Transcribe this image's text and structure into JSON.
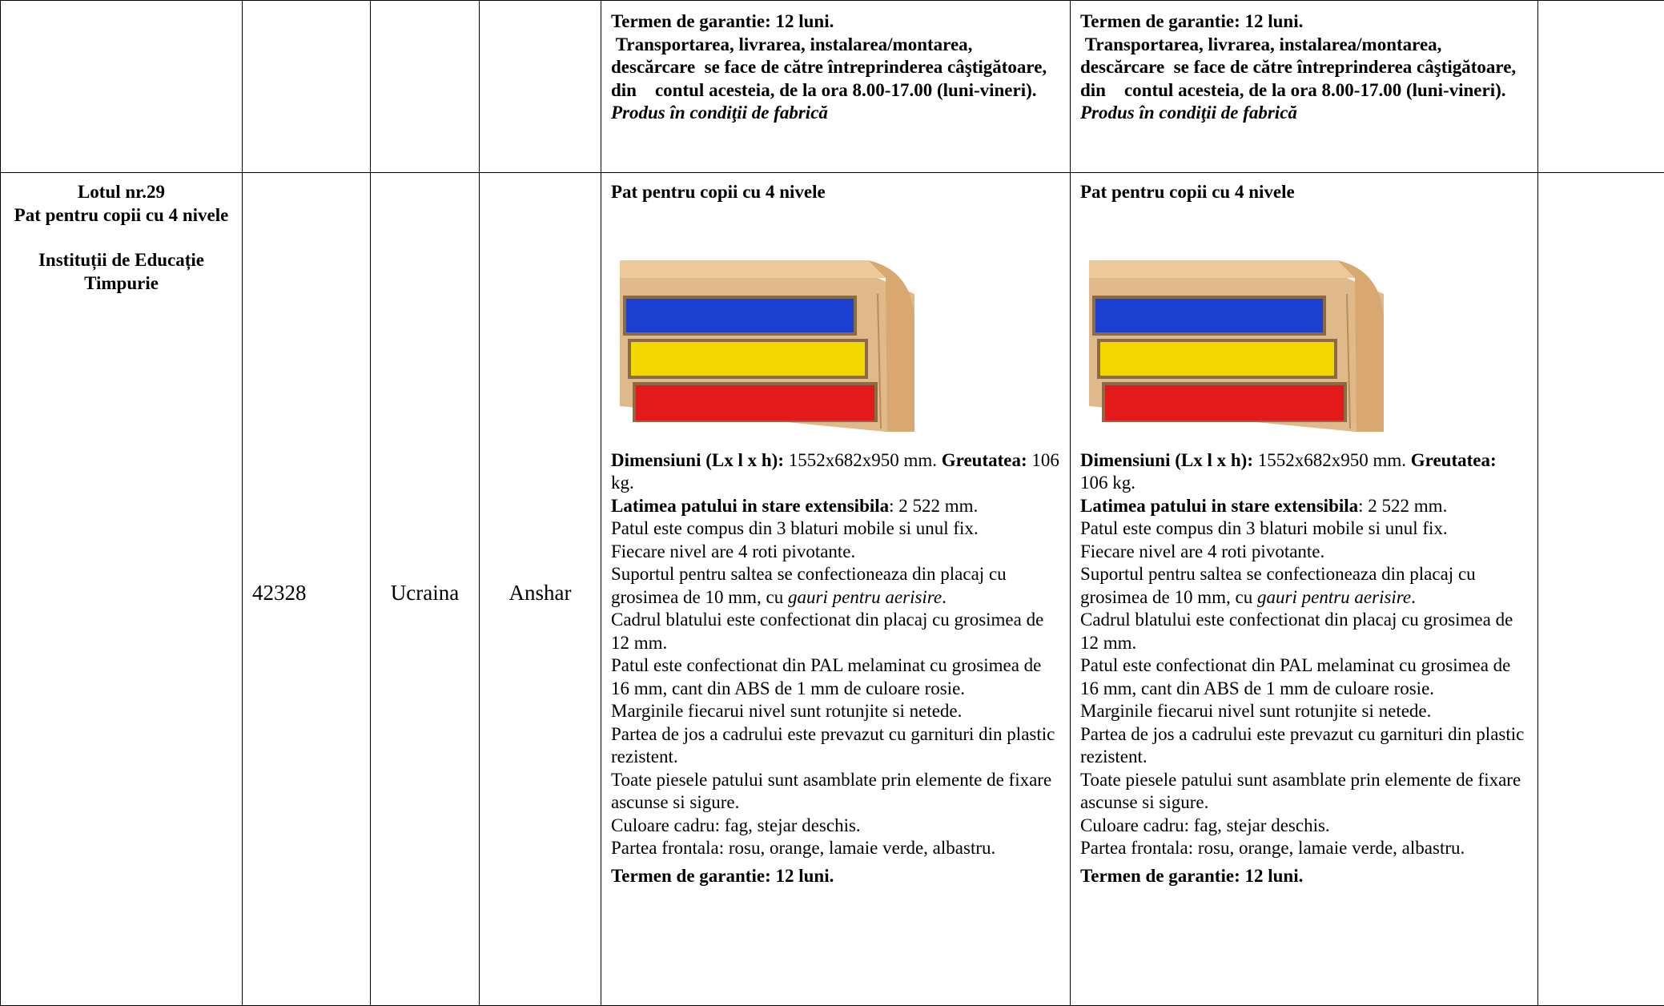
{
  "table": {
    "rows": [
      {
        "spec_required": {
          "paragraphs": [
            {
              "runs": [
                {
                  "style": "bold",
                  "text": "Termen de garantie: 12 luni."
                }
              ]
            },
            {
              "runs": [
                {
                  "style": "bold",
                  "text": " Transportarea, livrarea, instalarea/montarea, descărcare  se face de către întreprinderea câştigătoare,  din    contul acesteia, de la ora 8.00-17.00 (luni-vineri)."
                }
              ]
            },
            {
              "runs": [
                {
                  "style": "bold-italic",
                  "text": "Produs în condiţii de fabrică"
                }
              ]
            }
          ]
        },
        "spec_offered": {
          "paragraphs": [
            {
              "runs": [
                {
                  "style": "bold",
                  "text": "Termen de garantie: 12 luni."
                }
              ]
            },
            {
              "runs": [
                {
                  "style": "bold",
                  "text": " Transportarea, livrarea, instalarea/montarea, descărcare  se face de către întreprinderea câştigătoare,  din    contul acesteia, de la ora 8.00-17.00 (luni-vineri)."
                }
              ]
            },
            {
              "runs": [
                {
                  "style": "bold-italic",
                  "text": "Produs în condiţii de fabrică"
                }
              ]
            }
          ]
        }
      },
      {
        "lot": "Lotul nr.29",
        "item": "Pat pentru copii cu 4 nivele",
        "beneficiary": "Instituții de Educație Timpurie",
        "code": "42328",
        "country": "Ucraina",
        "producer": "Anshar",
        "spec_required": {
          "title": "Pat pentru copii cu 4 nivele",
          "paragraphs": [
            {
              "runs": [
                {
                  "style": "bold",
                  "text": "Dimensiuni (Lx l x h):"
                },
                {
                  "style": "normal",
                  "text": " 1552x682x950 mm. "
                },
                {
                  "style": "bold",
                  "text": "Greutatea:"
                },
                {
                  "style": "normal",
                  "text": " 106 kg."
                }
              ]
            },
            {
              "runs": [
                {
                  "style": "bold",
                  "text": "Latimea patului in stare extensibila"
                },
                {
                  "style": "normal",
                  "text": ": 2 522 mm."
                }
              ]
            },
            {
              "runs": [
                {
                  "style": "normal",
                  "text": "Patul este compus din 3 blaturi mobile si unul fix."
                }
              ]
            },
            {
              "runs": [
                {
                  "style": "normal",
                  "text": "Fiecare nivel are 4 roti pivotante."
                }
              ]
            },
            {
              "runs": [
                {
                  "style": "normal",
                  "text": "Suportul pentru saltea se confectioneaza din placaj cu grosimea de 10 mm, cu "
                },
                {
                  "style": "italic",
                  "text": "gauri pentru aerisire"
                },
                {
                  "style": "normal",
                  "text": "."
                }
              ]
            },
            {
              "runs": [
                {
                  "style": "normal",
                  "text": "Cadrul blatului este confectionat din placaj cu grosimea de 12 mm."
                }
              ]
            },
            {
              "runs": [
                {
                  "style": "normal",
                  "text": "Patul este confectionat din PAL melaminat cu grosimea de 16 mm, cant din ABS de 1 mm de culoare rosie."
                }
              ]
            },
            {
              "runs": [
                {
                  "style": "normal",
                  "text": "Marginile fiecarui nivel sunt rotunjite si netede."
                }
              ]
            },
            {
              "runs": [
                {
                  "style": "normal",
                  "text": "Partea de jos a cadrului este prevazut cu garnituri din plastic rezistent."
                }
              ]
            },
            {
              "runs": [
                {
                  "style": "normal",
                  "text": "Toate piesele patului sunt asamblate prin elemente de fixare ascunse si sigure."
                }
              ]
            },
            {
              "runs": [
                {
                  "style": "normal",
                  "text": "Culoare cadru: fag, stejar deschis."
                }
              ]
            },
            {
              "runs": [
                {
                  "style": "normal",
                  "text": "Partea frontala: rosu, orange, lamaie verde, albastru."
                }
              ]
            },
            {
              "runs": [
                {
                  "style": "bold",
                  "text": "Termen de garantie: 12 luni."
                }
              ]
            }
          ]
        },
        "spec_offered": {
          "title": "Pat pentru copii cu 4 nivele",
          "paragraphs": [
            {
              "runs": [
                {
                  "style": "bold",
                  "text": "Dimensiuni (Lx l x h):"
                },
                {
                  "style": "normal",
                  "text": " 1552x682x950 mm. "
                },
                {
                  "style": "bold",
                  "text": "Greutatea:"
                },
                {
                  "style": "normal",
                  "text": " 106 kg."
                }
              ]
            },
            {
              "runs": [
                {
                  "style": "bold",
                  "text": "Latimea patului in stare extensibila"
                },
                {
                  "style": "normal",
                  "text": ": 2 522 mm."
                }
              ]
            },
            {
              "runs": [
                {
                  "style": "normal",
                  "text": "Patul este compus din 3 blaturi mobile si unul fix."
                }
              ]
            },
            {
              "runs": [
                {
                  "style": "normal",
                  "text": "Fiecare nivel are 4 roti pivotante."
                }
              ]
            },
            {
              "runs": [
                {
                  "style": "normal",
                  "text": "Suportul pentru saltea se confectioneaza din placaj cu grosimea de 10 mm, cu "
                },
                {
                  "style": "italic",
                  "text": "gauri pentru aerisire"
                },
                {
                  "style": "normal",
                  "text": "."
                }
              ]
            },
            {
              "runs": [
                {
                  "style": "normal",
                  "text": "Cadrul blatului este confectionat din placaj cu grosimea de 12 mm."
                }
              ]
            },
            {
              "runs": [
                {
                  "style": "normal",
                  "text": "Patul este confectionat din PAL melaminat cu grosimea de 16 mm, cant din ABS de 1 mm de culoare rosie."
                }
              ]
            },
            {
              "runs": [
                {
                  "style": "normal",
                  "text": "Marginile fiecarui nivel sunt rotunjite si netede."
                }
              ]
            },
            {
              "runs": [
                {
                  "style": "normal",
                  "text": "Partea de jos a cadrului este prevazut cu garnituri din plastic rezistent."
                }
              ]
            },
            {
              "runs": [
                {
                  "style": "normal",
                  "text": "Toate piesele patului sunt asamblate prin elemente de fixare ascunse si sigure."
                }
              ]
            },
            {
              "runs": [
                {
                  "style": "normal",
                  "text": "Culoare cadru: fag, stejar deschis."
                }
              ]
            },
            {
              "runs": [
                {
                  "style": "normal",
                  "text": "Partea frontala: rosu, orange, lamaie verde, albastru."
                }
              ]
            },
            {
              "runs": [
                {
                  "style": "bold",
                  "text": "Termen de garantie: 12 luni."
                }
              ]
            }
          ]
        }
      }
    ]
  }
}
